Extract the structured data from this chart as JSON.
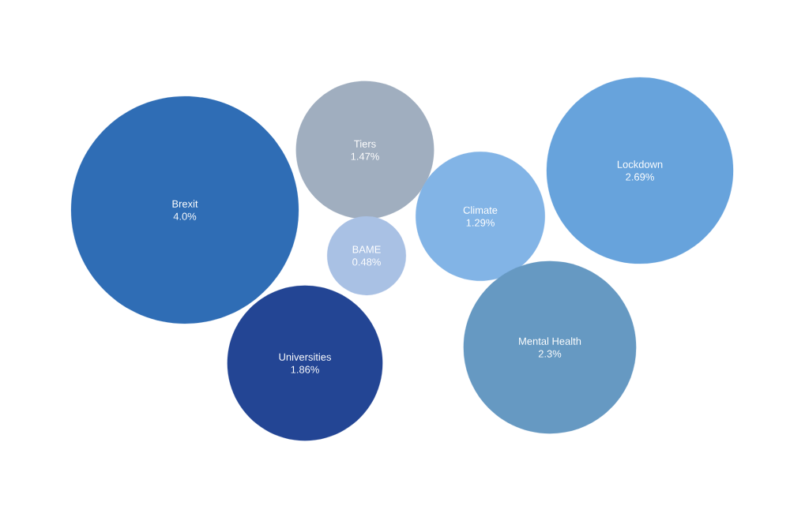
{
  "chart_data": {
    "type": "other",
    "categories": [
      "Brexit",
      "Tiers",
      "BAME",
      "Climate",
      "Lockdown",
      "Universities",
      "Mental Health"
    ],
    "values": [
      4.0,
      1.47,
      0.48,
      1.29,
      2.69,
      1.86,
      2.3
    ],
    "value_labels": [
      "4.0%",
      "1.47%",
      "0.48%",
      "1.29%",
      "2.69%",
      "1.86%",
      "2.3%"
    ],
    "colors": [
      "#2f6db5",
      "#a0aebf",
      "#a9c1e4",
      "#82b4e6",
      "#67a3dc",
      "#234594",
      "#6699c2"
    ]
  }
}
